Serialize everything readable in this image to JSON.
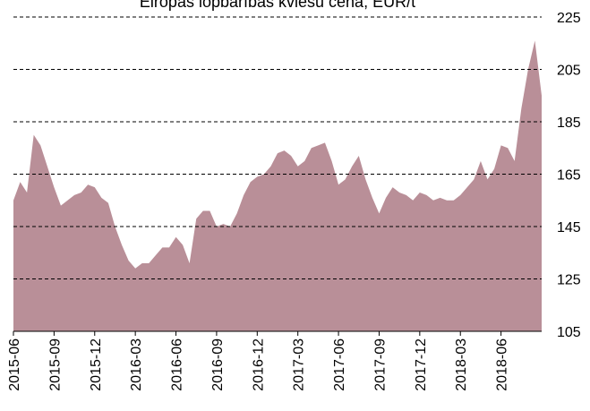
{
  "chart_data": {
    "type": "area",
    "title": "Eiropas lopbarības kviešu cena, EUR/t",
    "categories": [
      "2015-06",
      null,
      null,
      null,
      null,
      null,
      "2015-09",
      null,
      null,
      null,
      null,
      null,
      "2015-12",
      null,
      null,
      null,
      null,
      null,
      "2016-03",
      null,
      null,
      null,
      null,
      null,
      "2016-06",
      null,
      null,
      null,
      null,
      null,
      "2016-09",
      null,
      null,
      null,
      null,
      null,
      "2016-12",
      null,
      null,
      null,
      null,
      null,
      "2017-03",
      null,
      null,
      null,
      null,
      null,
      "2017-06",
      null,
      null,
      null,
      null,
      null,
      "2017-09",
      null,
      null,
      null,
      null,
      null,
      "2017-12",
      null,
      null,
      null,
      null,
      null,
      "2018-03",
      null,
      null,
      null,
      null,
      null,
      "2018-06",
      null,
      null,
      null,
      null,
      null,
      null
    ],
    "values": [
      155,
      162,
      158,
      180,
      176,
      168,
      160,
      153,
      155,
      157,
      158,
      161,
      160,
      156,
      154,
      145,
      138,
      132,
      129,
      131,
      131,
      134,
      137,
      137,
      141,
      138,
      131,
      148,
      151,
      151,
      145,
      146,
      145,
      150,
      157,
      162,
      164,
      165,
      168,
      173,
      174,
      172,
      168,
      170,
      175,
      176,
      177,
      170,
      161,
      163,
      168,
      172,
      163,
      156,
      150,
      156,
      160,
      158,
      157,
      155,
      158,
      157,
      155,
      156,
      155,
      155,
      157,
      160,
      163,
      170,
      163,
      167,
      176,
      175,
      170,
      190,
      205,
      216,
      195
    ],
    "color": "#b98f98",
    "ylim": [
      105,
      225
    ],
    "yticks": [
      105,
      125,
      145,
      165,
      185,
      205,
      225
    ],
    "grid": true
  }
}
